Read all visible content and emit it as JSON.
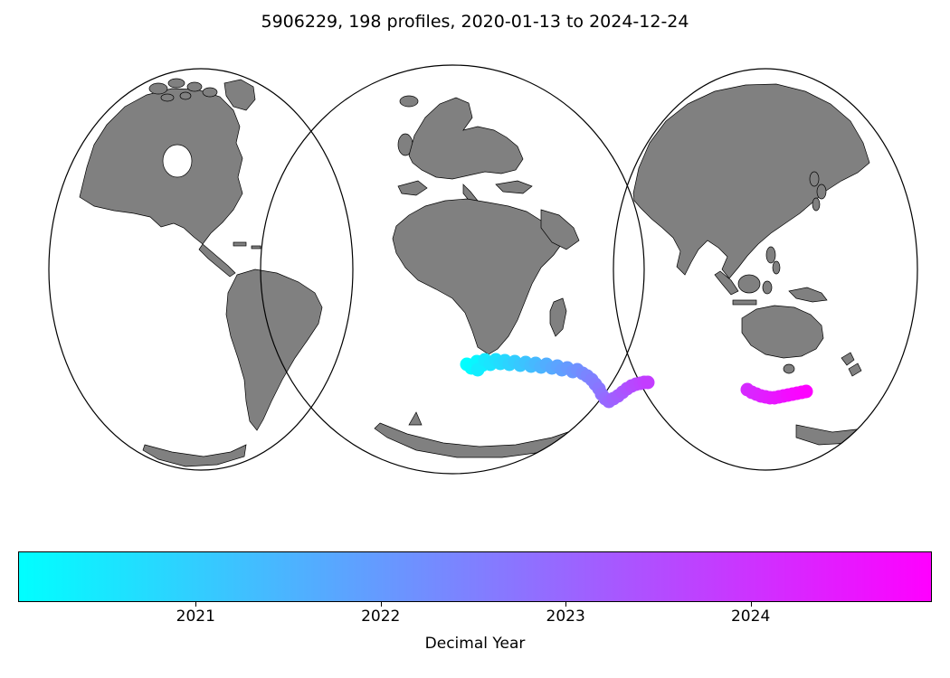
{
  "title": "5906229, 198 profiles, 2020-01-13 to 2024-12-24",
  "map": {
    "land_color": "#808080",
    "ocean_color": "#ffffff",
    "outline_color": "#000000",
    "projection": "interrupted three-lobe world map"
  },
  "chart_data": {
    "type": "scatter",
    "title": "5906229, 198 profiles, 2020-01-13 to 2024-12-24",
    "colormap": {
      "name": "cool",
      "start_color": "#00ffff",
      "end_color": "#ff00ff"
    },
    "colorbar": {
      "label": "Decimal Year",
      "min": 2020.04,
      "max": 2024.98,
      "ticks": [
        2021,
        2022,
        2023,
        2024
      ],
      "orientation": "horizontal"
    },
    "point_radius": 7.5,
    "coords_note": "points are [x_px, y_px, decimal_year] in the 1050x750 figure",
    "series": [
      {
        "name": "segment-1",
        "points": [
          [
            516,
            403,
            2020.05
          ],
          [
            521,
            407,
            2020.13
          ],
          [
            527,
            400,
            2020.21
          ],
          [
            533,
            404,
            2020.3
          ],
          [
            528,
            409,
            2020.38
          ],
          [
            536,
            398,
            2020.46
          ],
          [
            542,
            403,
            2020.55
          ],
          [
            548,
            398,
            2020.63
          ],
          [
            553,
            402,
            2020.71
          ],
          [
            558,
            399,
            2020.8
          ],
          [
            563,
            403,
            2020.9
          ],
          [
            569,
            400,
            2021.0
          ],
          [
            575,
            404,
            2021.1
          ],
          [
            581,
            401,
            2021.2
          ],
          [
            587,
            405,
            2021.3
          ],
          [
            592,
            402,
            2021.4
          ],
          [
            598,
            406,
            2021.5
          ],
          [
            604,
            403,
            2021.6
          ],
          [
            610,
            407,
            2021.7
          ],
          [
            616,
            405,
            2021.8
          ],
          [
            621,
            409,
            2021.9
          ],
          [
            627,
            407,
            2022.0
          ],
          [
            633,
            411,
            2022.1
          ],
          [
            638,
            409,
            2022.2
          ],
          [
            644,
            413,
            2022.3
          ],
          [
            649,
            416,
            2022.4
          ],
          [
            654,
            420,
            2022.5
          ],
          [
            658,
            425,
            2022.6
          ],
          [
            662,
            430,
            2022.7
          ],
          [
            665,
            436,
            2022.8
          ],
          [
            669,
            441,
            2022.9
          ],
          [
            673,
            444,
            2023.0
          ],
          [
            678,
            441,
            2023.1
          ],
          [
            683,
            438,
            2023.2
          ],
          [
            688,
            434,
            2023.3
          ],
          [
            693,
            430,
            2023.4
          ],
          [
            698,
            427,
            2023.5
          ],
          [
            703,
            425,
            2023.58
          ],
          [
            708,
            424,
            2023.66
          ],
          [
            712,
            423,
            2023.74
          ],
          [
            716,
            423,
            2023.82
          ]
        ]
      },
      {
        "name": "segment-2",
        "points": [
          [
            826,
            431,
            2024.16
          ],
          [
            831,
            434,
            2024.22
          ],
          [
            836,
            436,
            2024.28
          ],
          [
            841,
            438,
            2024.34
          ],
          [
            846,
            439,
            2024.4
          ],
          [
            851,
            440,
            2024.46
          ],
          [
            856,
            440,
            2024.52
          ],
          [
            861,
            439,
            2024.58
          ],
          [
            866,
            438,
            2024.64
          ],
          [
            871,
            437,
            2024.7
          ],
          [
            876,
            436,
            2024.76
          ],
          [
            881,
            435,
            2024.82
          ],
          [
            886,
            434,
            2024.88
          ],
          [
            891,
            433,
            2024.94
          ]
        ]
      }
    ]
  }
}
